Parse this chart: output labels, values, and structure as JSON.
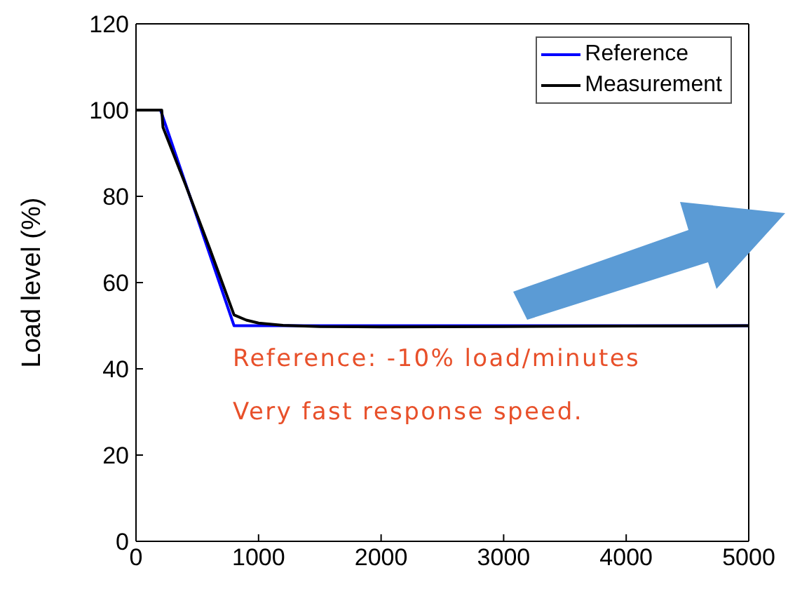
{
  "chart_data": {
    "type": "line",
    "ylabel": "Load level (%)",
    "xlim": [
      0,
      5000
    ],
    "xticks": [
      0,
      1000,
      2000,
      3000,
      4000,
      5000
    ],
    "ylim": [
      0,
      120
    ],
    "yticks": [
      0,
      20,
      40,
      60,
      80,
      100,
      120
    ],
    "legend": "top right",
    "marker": "none",
    "line_style": "solid",
    "series": [
      {
        "name": "Reference",
        "color": "#0000ff",
        "x": [
          0,
          200,
          800,
          5000
        ],
        "values": [
          100,
          100,
          50,
          50
        ]
      },
      {
        "name": "Measurement",
        "color": "#000000",
        "x": [
          0,
          210,
          220,
          400,
          600,
          800,
          900,
          1000,
          1200,
          1500,
          2000,
          3000,
          4000,
          5000
        ],
        "values": [
          100,
          100,
          96,
          83,
          68,
          52.5,
          51.3,
          50.6,
          50.1,
          49.8,
          49.7,
          49.8,
          49.9,
          50
        ]
      }
    ],
    "annotations": [
      "Reference: -10% load/minutes",
      "Very fast response speed."
    ]
  }
}
